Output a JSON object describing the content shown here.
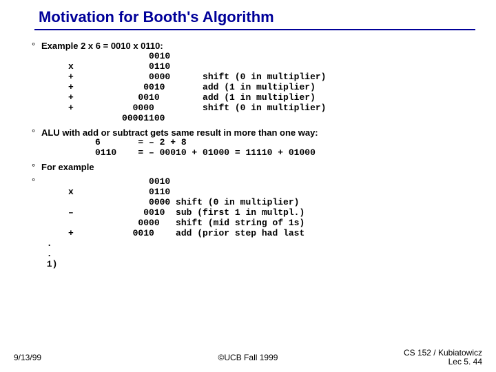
{
  "title": "Motivation for Booth's Algorithm",
  "title_color": "#000099",
  "underline_color": "#000099",
  "b1_intro": "Example 2 x 6 = 0010 x 0110:",
  "b1_lines": "                    0010\n     x              0110\n     +              0000      shift (0 in multiplier)\n     +             0010       add (1 in multiplier)\n     +            0010        add (1 in multiplier)\n     +           0000         shift (0 in multiplier)\n               00001100",
  "b2_intro": "ALU with add or subtract gets same result in more than one way:",
  "b2_lines": "          6       = – 2 + 8\n          0110    = – 00010 + 01000 = 11110 + 01000",
  "b3_intro": "For example",
  "b4_lines": "                    0010\n     x              0110\n                    0000 shift (0 in multiplier)\n     –             0010  sub (first 1 in multpl.)\n                  0000   shift (mid string of 1s)\n     +           0010    add (prior step had last",
  "b4_tail": " .\n .\n 1)",
  "footer_left": "9/13/99",
  "footer_center": "©UCB Fall 1999",
  "footer_right_1": "CS 152 / Kubiatowicz",
  "footer_right_2": "Lec 5. 44"
}
